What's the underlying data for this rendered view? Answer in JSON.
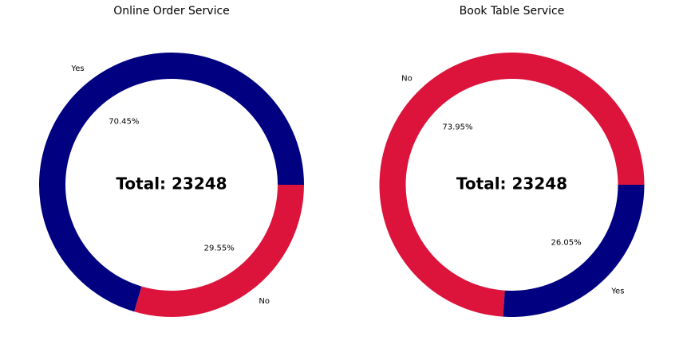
{
  "chart_data": [
    {
      "type": "pie",
      "variant": "donut",
      "title": "Online Order Service",
      "center_text": "Total: 23248",
      "start_angle_deg": 0,
      "direction": "counterclockwise",
      "slices": [
        {
          "label": "Yes",
          "value": 70.45,
          "pct_label": "70.45%",
          "color": "#000080"
        },
        {
          "label": "No",
          "value": 29.55,
          "pct_label": "29.55%",
          "color": "#DC143C"
        }
      ]
    },
    {
      "type": "pie",
      "variant": "donut",
      "title": "Book Table Service",
      "center_text": "Total: 23248",
      "start_angle_deg": 0,
      "direction": "counterclockwise",
      "slices": [
        {
          "label": "No",
          "value": 73.95,
          "pct_label": "73.95%",
          "color": "#DC143C"
        },
        {
          "label": "Yes",
          "value": 26.05,
          "pct_label": "26.05%",
          "color": "#000080"
        }
      ]
    }
  ]
}
